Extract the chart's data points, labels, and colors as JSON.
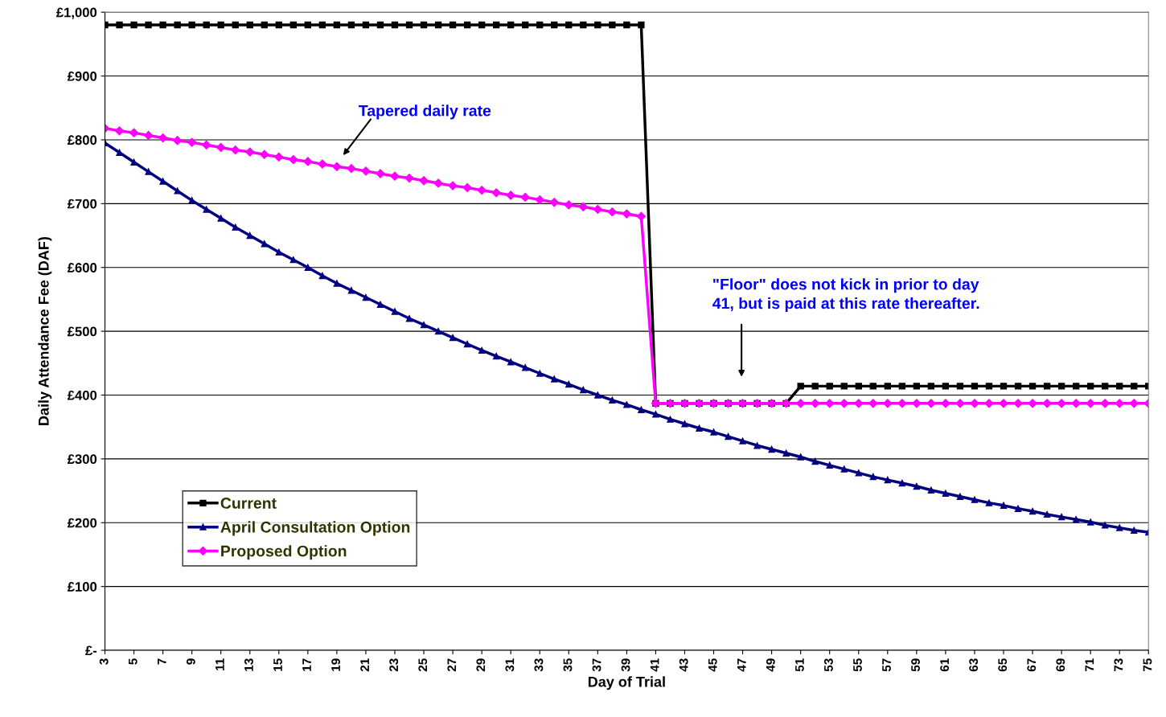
{
  "chart_data": {
    "type": "line",
    "xlabel": "Day of Trial",
    "ylabel": "Daily Attendance Fee (DAF)",
    "xlim": [
      3,
      75
    ],
    "xticks": [
      3,
      5,
      7,
      9,
      11,
      13,
      15,
      17,
      19,
      21,
      23,
      25,
      27,
      29,
      31,
      33,
      35,
      37,
      39,
      41,
      43,
      45,
      47,
      49,
      51,
      53,
      55,
      57,
      59,
      61,
      63,
      65,
      67,
      69,
      71,
      73,
      75
    ],
    "ylim": [
      0,
      1000
    ],
    "yticks": [
      {
        "value": 0,
        "label": "£-"
      },
      {
        "value": 100,
        "label": "£100"
      },
      {
        "value": 200,
        "label": "£200"
      },
      {
        "value": 300,
        "label": "£300"
      },
      {
        "value": 400,
        "label": "£400"
      },
      {
        "value": 500,
        "label": "£500"
      },
      {
        "value": 600,
        "label": "£600"
      },
      {
        "value": 700,
        "label": "£700"
      },
      {
        "value": 800,
        "label": "£800"
      },
      {
        "value": 900,
        "label": "£900"
      },
      {
        "value": 1000,
        "label": "£1,000"
      }
    ],
    "grid": "y",
    "legend": "bottom left",
    "x": [
      3,
      4,
      5,
      6,
      7,
      8,
      9,
      10,
      11,
      12,
      13,
      14,
      15,
      16,
      17,
      18,
      19,
      20,
      21,
      22,
      23,
      24,
      25,
      26,
      27,
      28,
      29,
      30,
      31,
      32,
      33,
      34,
      35,
      36,
      37,
      38,
      39,
      40,
      41,
      42,
      43,
      44,
      45,
      46,
      47,
      48,
      49,
      50,
      51,
      52,
      53,
      54,
      55,
      56,
      57,
      58,
      59,
      60,
      61,
      62,
      63,
      64,
      65,
      66,
      67,
      68,
      69,
      70,
      71,
      72,
      73,
      74,
      75
    ],
    "series": [
      {
        "name": "Current",
        "color": "#000000",
        "marker": "square",
        "values": [
          980,
          980,
          980,
          980,
          980,
          980,
          980,
          980,
          980,
          980,
          980,
          980,
          980,
          980,
          980,
          980,
          980,
          980,
          980,
          980,
          980,
          980,
          980,
          980,
          980,
          980,
          980,
          980,
          980,
          980,
          980,
          980,
          980,
          980,
          980,
          980,
          980,
          980,
          387,
          387,
          387,
          387,
          387,
          387,
          387,
          387,
          387,
          387,
          414,
          414,
          414,
          414,
          414,
          414,
          414,
          414,
          414,
          414,
          414,
          414,
          414,
          414,
          414,
          414,
          414,
          414,
          414,
          414,
          414,
          414,
          414,
          414,
          414
        ]
      },
      {
        "name": "April Consultation Option",
        "color": "#000080",
        "marker": "triangle",
        "values": [
          795,
          780,
          765,
          750,
          735,
          720,
          705,
          691,
          677,
          663,
          650,
          637,
          624,
          612,
          600,
          587,
          575,
          564,
          553,
          542,
          531,
          520,
          510,
          500,
          490,
          480,
          470,
          461,
          452,
          443,
          434,
          425,
          417,
          408,
          400,
          392,
          385,
          377,
          370,
          362,
          355,
          348,
          342,
          335,
          328,
          321,
          315,
          309,
          303,
          296,
          290,
          284,
          278,
          272,
          267,
          262,
          257,
          251,
          246,
          241,
          236,
          231,
          227,
          222,
          218,
          213,
          209,
          205,
          201,
          196,
          192,
          188,
          185
        ]
      },
      {
        "name": "Proposed Option",
        "color": "#ff00ff",
        "marker": "diamond",
        "values": [
          818,
          814,
          811,
          807,
          803,
          799,
          796,
          792,
          788,
          784,
          781,
          777,
          773,
          769,
          766,
          762,
          758,
          755,
          751,
          747,
          743,
          740,
          736,
          732,
          728,
          725,
          721,
          717,
          713,
          710,
          706,
          702,
          698,
          695,
          691,
          687,
          684,
          680,
          387,
          387,
          387,
          387,
          387,
          387,
          387,
          387,
          387,
          387,
          387,
          387,
          387,
          387,
          387,
          387,
          387,
          387,
          387,
          387,
          387,
          387,
          387,
          387,
          387,
          387,
          387,
          387,
          387,
          387,
          387,
          387,
          387,
          387,
          387
        ]
      }
    ],
    "annotations": [
      "Tapered daily rate",
      "\"Floor\" does not kick in prior to day\n41, but is paid at this rate thereafter."
    ]
  }
}
